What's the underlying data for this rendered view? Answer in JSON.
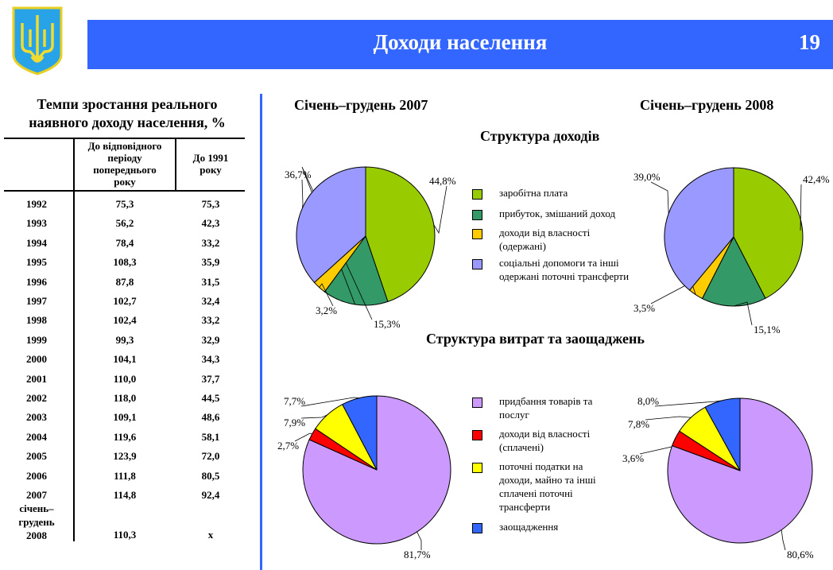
{
  "header": {
    "title": "Доходи населення",
    "page_number": "19",
    "logo": "Тризуб / coat-of-arms-of-Ukraine",
    "color": "#3366ff"
  },
  "table": {
    "title_lines": [
      "Темпи зростання реального",
      "наявного доходу населення, %"
    ],
    "columns": [
      "",
      "До відповідного періоду попереднього року",
      "До 1991 року"
    ],
    "column_header_lines": [
      [
        "До відповідного",
        "періоду",
        "попереднього",
        "року"
      ],
      [
        "До 1991",
        "року"
      ]
    ],
    "rows": [
      [
        "1992",
        "75,3",
        "75,3"
      ],
      [
        "1993",
        "56,2",
        "42,3"
      ],
      [
        "1994",
        "78,4",
        "33,2"
      ],
      [
        "1995",
        "108,3",
        "35,9"
      ],
      [
        "1996",
        "87,8",
        "31,5"
      ],
      [
        "1997",
        "102,7",
        "32,4"
      ],
      [
        "1998",
        "102,4",
        "33,2"
      ],
      [
        "1999",
        "99,3",
        "32,9"
      ],
      [
        "2000",
        "104,1",
        "34,3"
      ],
      [
        "2001",
        "110,0",
        "37,7"
      ],
      [
        "2002",
        "118,0",
        "44,5"
      ],
      [
        "2003",
        "109,1",
        "48,6"
      ],
      [
        "2004",
        "119,6",
        "58,1"
      ],
      [
        "2005",
        "123,9",
        "72,0"
      ],
      [
        "2006",
        "111,8",
        "80,5"
      ],
      [
        "2007",
        "114,8",
        "92,4"
      ]
    ],
    "last_row": {
      "label_lines": [
        "січень–",
        "грудень",
        "2008"
      ],
      "v1": "110,3",
      "v2": "x"
    }
  },
  "charts": {
    "period_left": "Січень–грудень 2007",
    "period_right": "Січень–грудень 2008",
    "income_title": "Структура доходів",
    "spending_title": "Структура витрат та заощаджень"
  },
  "chart_data": [
    {
      "type": "pie",
      "group": "income",
      "period": "Січень–грудень 2007",
      "categories": [
        "заробітна плата",
        "прибуток, змішаний доход",
        "доходи від власності (одержані)",
        "соціальні допомоги та інші одержані поточні трансферти"
      ],
      "values": [
        44.8,
        15.3,
        3.2,
        36.7
      ],
      "labels": [
        "44,8%",
        "15,3%",
        "3,2%",
        "36,7%"
      ],
      "colors": [
        "#99cc00",
        "#339966",
        "#ffcc00",
        "#9999ff"
      ]
    },
    {
      "type": "pie",
      "group": "income",
      "period": "Січень–грудень 2008",
      "categories": [
        "заробітна плата",
        "прибуток, змішаний доход",
        "доходи від власності (одержані)",
        "соціальні допомоги та інші одержані поточні трансферти"
      ],
      "values": [
        42.4,
        15.1,
        3.5,
        39.0
      ],
      "labels": [
        "42,4%",
        "15,1%",
        "3,5%",
        "39,0%"
      ],
      "colors": [
        "#99cc00",
        "#339966",
        "#ffcc00",
        "#9999ff"
      ]
    },
    {
      "type": "pie",
      "group": "spending",
      "period": "Січень–грудень 2007",
      "categories": [
        "придбання товарів та послуг",
        "доходи від власності (сплачені)",
        "поточні податки на доходи, майно та інші сплачені поточні трансферти",
        "заощадження"
      ],
      "values": [
        81.7,
        2.7,
        7.9,
        7.7
      ],
      "labels": [
        "81,7%",
        "2,7%",
        "7,9%",
        "7,7%"
      ],
      "colors": [
        "#cc99ff",
        "#ff0000",
        "#ffff00",
        "#3366ff"
      ]
    },
    {
      "type": "pie",
      "group": "spending",
      "period": "Січень–грудень 2008",
      "categories": [
        "придбання товарів та послуг",
        "доходи від власності (сплачені)",
        "поточні податки на доходи, майно та інші сплачені поточні трансферти",
        "заощадження"
      ],
      "values": [
        80.6,
        3.6,
        7.8,
        8.0
      ],
      "labels": [
        "80,6%",
        "3,6%",
        "7,8%",
        "8,0%"
      ],
      "colors": [
        "#cc99ff",
        "#ff0000",
        "#ffff00",
        "#3366ff"
      ]
    }
  ],
  "legends": {
    "income": [
      {
        "lines": [
          "заробітна плата"
        ],
        "color": "#99cc00"
      },
      {
        "lines": [
          "прибуток, змішаний доход"
        ],
        "color": "#339966"
      },
      {
        "lines": [
          "доходи від власності",
          "(одержані)"
        ],
        "color": "#ffcc00"
      },
      {
        "lines": [
          "соціальні допомоги та інші",
          "одержані поточні трансферти"
        ],
        "color": "#9999ff"
      }
    ],
    "spending": [
      {
        "lines": [
          "придбання товарів та",
          "послуг"
        ],
        "color": "#cc99ff"
      },
      {
        "lines": [
          "доходи від власності",
          "(сплачені)"
        ],
        "color": "#ff0000"
      },
      {
        "lines": [
          "поточні податки на",
          "доходи, майно та інші",
          "сплачені поточні",
          "трансферти"
        ],
        "color": "#ffff00"
      },
      {
        "lines": [
          "заощадження"
        ],
        "color": "#3366ff"
      }
    ]
  }
}
